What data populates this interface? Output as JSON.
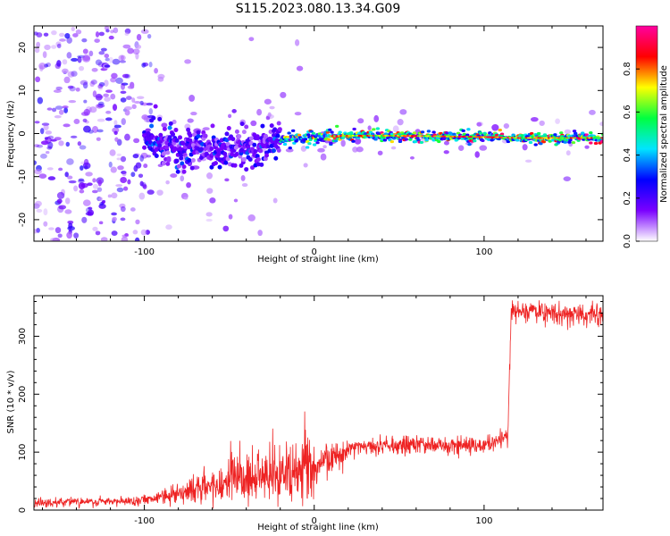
{
  "title": "S115.2023.080.13.34.G09",
  "chart_data": [
    {
      "type": "heatmap",
      "xlabel": "Height of straight line (km)",
      "ylabel": "Frequency (Hz)",
      "xlim": [
        -165,
        170
      ],
      "ylim": [
        -25,
        25
      ],
      "x_ticks": [
        "-100",
        "0",
        "100"
      ],
      "x_tick_values": [
        -100,
        0,
        100
      ],
      "y_ticks": [
        "20",
        "10",
        "0",
        "-10",
        "-20"
      ],
      "y_tick_values": [
        20,
        10,
        0,
        -10,
        -20
      ],
      "colorbar": {
        "label": "Normalized spectral amplitude",
        "range": [
          0,
          1
        ],
        "ticks": [
          "0.0",
          "0.2",
          "0.4",
          "0.6",
          "0.8"
        ],
        "tick_values": [
          0,
          0.2,
          0.4,
          0.6,
          0.8
        ],
        "colormap": [
          "#ffffff",
          "#7a00ff",
          "#0000ff",
          "#00e5ff",
          "#00ff40",
          "#ffff00",
          "#ff0000",
          "#ff00a0"
        ]
      },
      "ridge": {
        "x": [
          -100,
          -80,
          -60,
          -40,
          -30,
          -20,
          -10,
          0,
          20,
          50,
          100,
          120,
          150,
          170
        ],
        "frequency": [
          -2,
          -3,
          -4,
          -3.5,
          -2.5,
          -1.5,
          -1,
          -0.7,
          -0.5,
          -0.5,
          -0.8,
          -1,
          -1,
          -1
        ]
      }
    },
    {
      "type": "line",
      "xlabel": "Height of straight line (km)",
      "ylabel": "SNR (10 * v/v)",
      "xlim": [
        -165,
        170
      ],
      "ylim": [
        0,
        370
      ],
      "x_ticks": [
        "-100",
        "0",
        "100"
      ],
      "x_tick_values": [
        -100,
        0,
        100
      ],
      "y_ticks": [
        "0",
        "100",
        "200",
        "300"
      ],
      "y_tick_values": [
        0,
        100,
        200,
        300
      ],
      "color": "#ee2222",
      "series": [
        {
          "x": [
            -165,
            -150,
            -130,
            -110,
            -100,
            -90,
            -80,
            -70,
            -60,
            -50,
            -40,
            -30,
            -20,
            -10,
            0,
            10,
            20,
            30,
            40,
            50,
            60,
            70,
            80,
            90,
            100,
            105,
            110,
            114,
            116,
            120,
            130,
            140,
            150,
            160,
            170
          ],
          "y": [
            12,
            13,
            14,
            15,
            18,
            24,
            30,
            36,
            42,
            46,
            52,
            55,
            60,
            65,
            75,
            90,
            105,
            112,
            112,
            112,
            112,
            112,
            112,
            112,
            112,
            112,
            125,
            128,
            348,
            345,
            342,
            340,
            338,
            336,
            335
          ]
        }
      ]
    }
  ]
}
